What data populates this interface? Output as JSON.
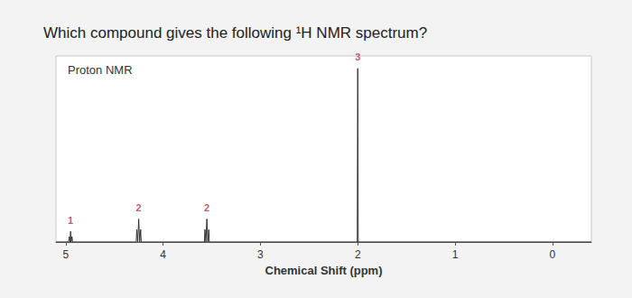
{
  "question": "Which compound gives the following ¹H NMR spectrum?",
  "chart_data": {
    "type": "line",
    "title": "Proton NMR",
    "xlabel": "Chemical Shift (ppm)",
    "x": [
      5.1,
      4.97,
      4.965,
      4.955,
      4.95,
      4.945,
      4.935,
      4.93,
      4.275,
      4.27,
      4.26,
      4.25,
      4.24,
      4.23,
      4.225,
      3.575,
      3.57,
      3.56,
      3.55,
      3.54,
      3.53,
      3.525,
      2.005,
      2.0,
      1.995,
      -0.4
    ],
    "values": [
      0,
      0,
      3,
      0,
      6,
      0,
      3,
      0,
      0,
      7,
      0,
      13,
      0,
      7,
      0,
      0,
      7,
      0,
      13,
      0,
      7,
      0,
      0,
      98,
      0,
      0
    ],
    "color": "#333333",
    "xlim": [
      5.1,
      -0.4
    ],
    "xticks": [
      5,
      4,
      3,
      2,
      1,
      0
    ],
    "ylim": [
      0,
      105
    ],
    "integrations": [
      {
        "x": 4.95,
        "value": 1
      },
      {
        "x": 4.25,
        "value": 2
      },
      {
        "x": 3.55,
        "value": 2
      },
      {
        "x": 2.0,
        "value": 3
      }
    ],
    "integration_color": "#b0304a",
    "grid": false,
    "tick_labels": "x"
  }
}
